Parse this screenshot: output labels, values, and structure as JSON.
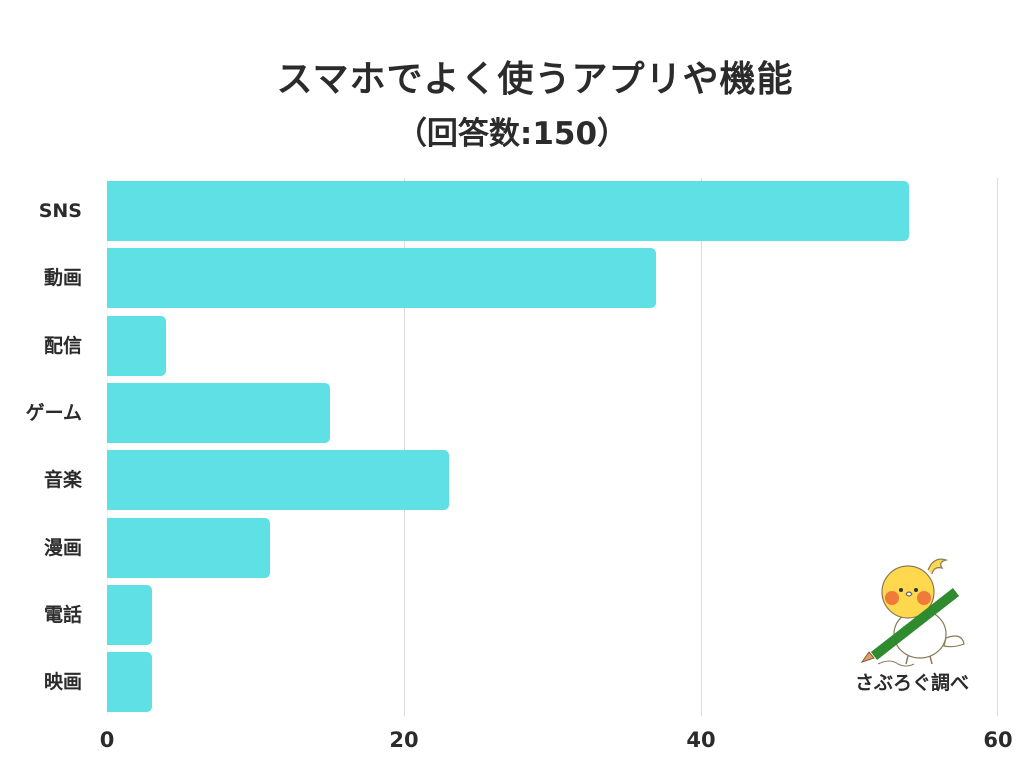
{
  "chart_data": {
    "type": "bar",
    "orientation": "horizontal",
    "title": "スマホでよく使うアプリや機能",
    "subtitle": "（回答数:150）",
    "categories": [
      "SNS",
      "動画",
      "配信",
      "ゲーム",
      "音楽",
      "漫画",
      "電話",
      "映画"
    ],
    "values": [
      54,
      37,
      4,
      15,
      23,
      11,
      3,
      3
    ],
    "xlabel": "",
    "ylabel": "",
    "xlim": [
      0,
      60
    ],
    "xticks": [
      "0",
      "20",
      "40",
      "60"
    ],
    "grid": true,
    "legend": null,
    "bar_color": "#5ee0e5",
    "annotation": "さぶろぐ調べ"
  },
  "credit": "さぶろぐ調べ"
}
